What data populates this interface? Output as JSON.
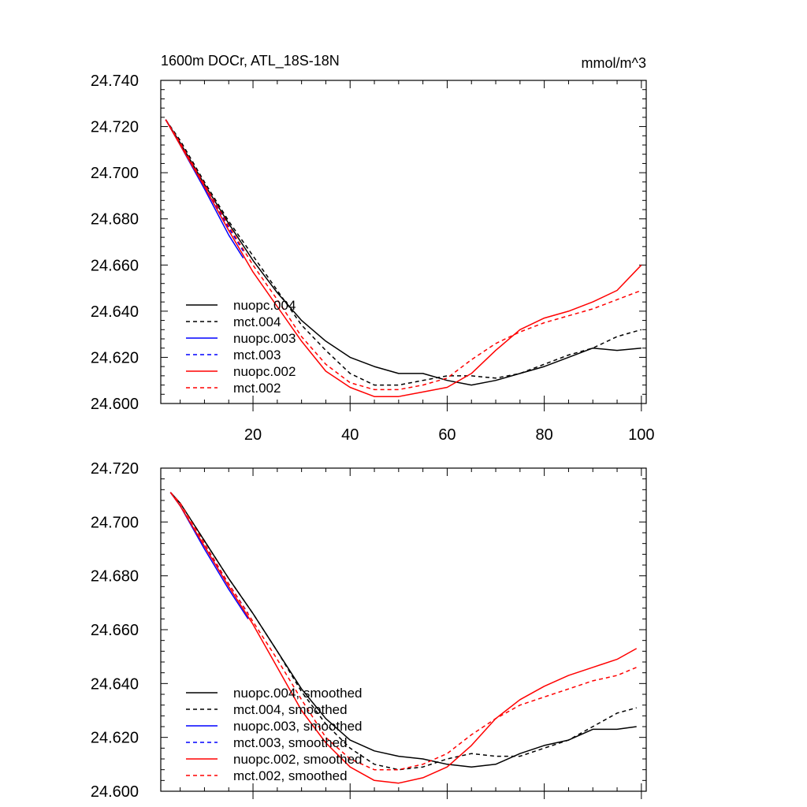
{
  "chart_data": [
    {
      "type": "line",
      "title": "1600m DOCr, ATL_18S-18N",
      "units": "mmol/m^3",
      "xlim": [
        1,
        101
      ],
      "ylim": [
        24.6,
        24.74
      ],
      "x_tick_labels": [
        "20",
        "40",
        "60",
        "80",
        "100"
      ],
      "y_tick_labels": [
        "24.740",
        "24.720",
        "24.700",
        "24.680",
        "24.660",
        "24.640",
        "24.620",
        "24.600"
      ],
      "grid": false,
      "legend_position": "lower-left",
      "series": [
        {
          "name": "nuopc.004",
          "color": "#000000",
          "dash": "solid",
          "x": [
            2,
            5,
            10,
            15,
            20,
            25,
            30,
            35,
            40,
            45,
            50,
            55,
            60,
            65,
            70,
            75,
            80,
            85,
            90,
            95,
            100
          ],
          "y": [
            24.723,
            24.713,
            24.695,
            24.678,
            24.662,
            24.648,
            24.636,
            24.627,
            24.62,
            24.616,
            24.613,
            24.613,
            24.61,
            24.608,
            24.61,
            24.613,
            24.616,
            24.62,
            24.624,
            24.623,
            24.624
          ]
        },
        {
          "name": "mct.004",
          "color": "#000000",
          "dash": "dashed",
          "x": [
            2,
            5,
            10,
            15,
            20,
            25,
            30,
            35,
            40,
            45,
            50,
            55,
            60,
            65,
            70,
            75,
            80,
            85,
            90,
            95,
            100
          ],
          "y": [
            24.723,
            24.714,
            24.696,
            24.679,
            24.664,
            24.649,
            24.634,
            24.623,
            24.613,
            24.608,
            24.608,
            24.61,
            24.612,
            24.612,
            24.611,
            24.613,
            24.617,
            24.621,
            24.624,
            24.629,
            24.632
          ]
        },
        {
          "name": "nuopc.003",
          "color": "#0000ff",
          "dash": "solid",
          "x": [
            2,
            5,
            10,
            15,
            18
          ],
          "y": [
            24.723,
            24.712,
            24.693,
            24.673,
            24.663
          ]
        },
        {
          "name": "mct.003",
          "color": "#0000ff",
          "dash": "dashed",
          "x": [
            2,
            5,
            10,
            15,
            18
          ],
          "y": [
            24.723,
            24.713,
            24.695,
            24.676,
            24.666
          ]
        },
        {
          "name": "nuopc.002",
          "color": "#ff0000",
          "dash": "solid",
          "x": [
            2,
            5,
            10,
            15,
            20,
            25,
            30,
            35,
            40,
            45,
            50,
            55,
            60,
            65,
            70,
            75,
            80,
            85,
            90,
            95,
            100
          ],
          "y": [
            24.723,
            24.712,
            24.694,
            24.675,
            24.657,
            24.642,
            24.627,
            24.614,
            24.607,
            24.603,
            24.603,
            24.605,
            24.607,
            24.613,
            24.623,
            24.632,
            24.637,
            24.64,
            24.644,
            24.649,
            24.66
          ]
        },
        {
          "name": "mct.002",
          "color": "#ff0000",
          "dash": "dashed",
          "x": [
            2,
            5,
            10,
            15,
            20,
            25,
            30,
            35,
            40,
            45,
            50,
            55,
            60,
            65,
            70,
            75,
            80,
            85,
            90,
            95,
            100
          ],
          "y": [
            24.723,
            24.713,
            24.695,
            24.677,
            24.66,
            24.645,
            24.629,
            24.617,
            24.609,
            24.606,
            24.606,
            24.608,
            24.611,
            24.619,
            24.626,
            24.631,
            24.635,
            24.638,
            24.641,
            24.645,
            24.649
          ]
        }
      ]
    },
    {
      "type": "line",
      "xlim": [
        1,
        101
      ],
      "ylim": [
        24.6,
        24.72
      ],
      "y_tick_labels": [
        "24.720",
        "24.700",
        "24.680",
        "24.660",
        "24.640",
        "24.620",
        "24.600"
      ],
      "grid": false,
      "legend_position": "lower-left",
      "series": [
        {
          "name": "nuopc.004, smoothed",
          "color": "#000000",
          "dash": "solid",
          "x": [
            3,
            5,
            10,
            15,
            20,
            25,
            30,
            35,
            40,
            45,
            50,
            55,
            60,
            65,
            70,
            75,
            80,
            85,
            90,
            95,
            99
          ],
          "y": [
            24.711,
            24.707,
            24.693,
            24.679,
            24.666,
            24.652,
            24.638,
            24.627,
            24.619,
            24.615,
            24.613,
            24.612,
            24.61,
            24.609,
            24.61,
            24.614,
            24.617,
            24.619,
            24.623,
            24.623,
            24.624
          ]
        },
        {
          "name": "mct.004, smoothed",
          "color": "#000000",
          "dash": "dashed",
          "x": [
            3,
            5,
            10,
            15,
            20,
            25,
            30,
            35,
            40,
            45,
            50,
            55,
            60,
            65,
            70,
            75,
            80,
            85,
            90,
            95,
            99
          ],
          "y": [
            24.711,
            24.707,
            24.693,
            24.679,
            24.666,
            24.652,
            24.637,
            24.625,
            24.616,
            24.61,
            24.608,
            24.609,
            24.612,
            24.614,
            24.613,
            24.613,
            24.616,
            24.619,
            24.624,
            24.629,
            24.631
          ]
        },
        {
          "name": "nuopc.003, smoothed",
          "color": "#0000ff",
          "dash": "solid",
          "x": [
            3,
            5,
            10,
            15,
            19
          ],
          "y": [
            24.711,
            24.706,
            24.69,
            24.675,
            24.664
          ]
        },
        {
          "name": "mct.003, smoothed",
          "color": "#0000ff",
          "dash": "dashed",
          "x": [
            3,
            5,
            10,
            15,
            19
          ],
          "y": [
            24.711,
            24.706,
            24.691,
            24.677,
            24.666
          ]
        },
        {
          "name": "nuopc.002, smoothed",
          "color": "#ff0000",
          "dash": "solid",
          "x": [
            3,
            5,
            10,
            15,
            20,
            25,
            30,
            35,
            40,
            45,
            50,
            55,
            60,
            65,
            70,
            75,
            80,
            85,
            90,
            95,
            99
          ],
          "y": [
            24.711,
            24.706,
            24.691,
            24.676,
            24.662,
            24.646,
            24.63,
            24.618,
            24.609,
            24.604,
            24.603,
            24.605,
            24.609,
            24.617,
            24.627,
            24.634,
            24.639,
            24.643,
            24.646,
            24.649,
            24.653
          ]
        },
        {
          "name": "mct.002, smoothed",
          "color": "#ff0000",
          "dash": "dashed",
          "x": [
            3,
            5,
            10,
            15,
            20,
            25,
            30,
            35,
            40,
            45,
            50,
            55,
            60,
            65,
            70,
            75,
            80,
            85,
            90,
            95,
            99
          ],
          "y": [
            24.711,
            24.707,
            24.692,
            24.677,
            24.663,
            24.649,
            24.634,
            24.62,
            24.612,
            24.608,
            24.608,
            24.61,
            24.614,
            24.621,
            24.627,
            24.632,
            24.635,
            24.638,
            24.641,
            24.643,
            24.646
          ]
        }
      ]
    }
  ]
}
